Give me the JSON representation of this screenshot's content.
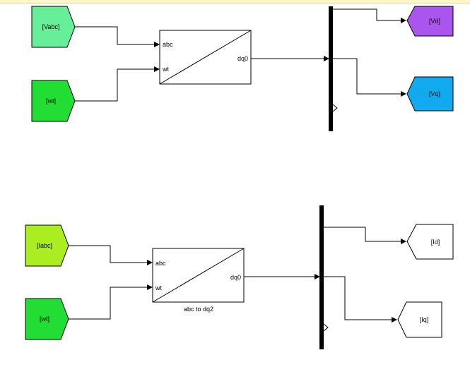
{
  "tags": {
    "vabc": {
      "label": "[Vabc]",
      "color": "#66ee99"
    },
    "wt_top": {
      "label": "[wt]",
      "color": "#22dd33"
    },
    "iabc": {
      "label": "[Iabc]",
      "color": "#aaee22"
    },
    "wt_bottom": {
      "label": "[wt]",
      "color": "#22dd33"
    },
    "vd": {
      "label": "[Vd]",
      "color": "#aa55ee"
    },
    "vq": {
      "label": "[Vq]",
      "color": "#11aaee"
    },
    "id": {
      "label": "[Id]",
      "color": "#ffffff"
    },
    "iq": {
      "label": "[Iq]",
      "color": "#ffffff"
    }
  },
  "blocks": {
    "top": {
      "in1": "abc",
      "in2": "wt",
      "out": "dq0",
      "name": ""
    },
    "bottom": {
      "in1": "abc",
      "in2": "wt",
      "out": "dq0",
      "name": "abc to dq2"
    }
  }
}
